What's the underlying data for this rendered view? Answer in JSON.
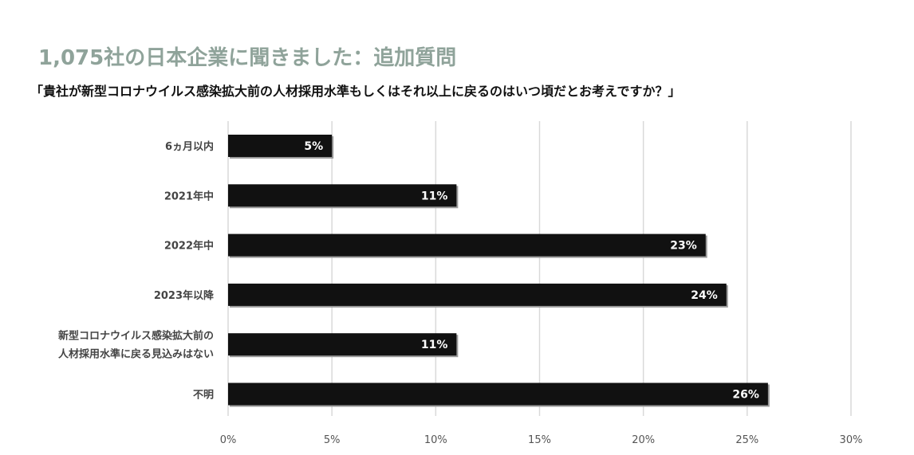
{
  "header": {
    "title": "1,075社の日本企業に聞きました：追加質問",
    "subtitle": "「貴社が新型コロナウイルス感染拡大前の人材採用水準もしくはそれ以上に戻るのはいつ頃だとお考えですか？」"
  },
  "colors": {
    "title": "#8fa39a",
    "bar": "#111111",
    "bar_shadow": "#9a9a9a",
    "grid": "#d9d9d9"
  },
  "chart_data": {
    "type": "bar",
    "orientation": "horizontal",
    "categories": [
      [
        "6ヵ月以内"
      ],
      [
        "2021年中"
      ],
      [
        "2022年中"
      ],
      [
        "2023年以降"
      ],
      [
        "新型コロナウイルス感染拡大前の",
        "人材採用水準に戻る見込みはない"
      ],
      [
        "不明"
      ]
    ],
    "values": [
      5,
      11,
      23,
      24,
      11,
      26
    ],
    "data_labels": [
      "5%",
      "11%",
      "23%",
      "24%",
      "11%",
      "26%"
    ],
    "xlim": [
      0,
      30
    ],
    "xticks": [
      0,
      5,
      10,
      15,
      20,
      25,
      30
    ],
    "xtick_labels": [
      "0%",
      "5%",
      "10%",
      "15%",
      "20%",
      "25%",
      "30%"
    ],
    "grid": true,
    "legend": "none"
  }
}
